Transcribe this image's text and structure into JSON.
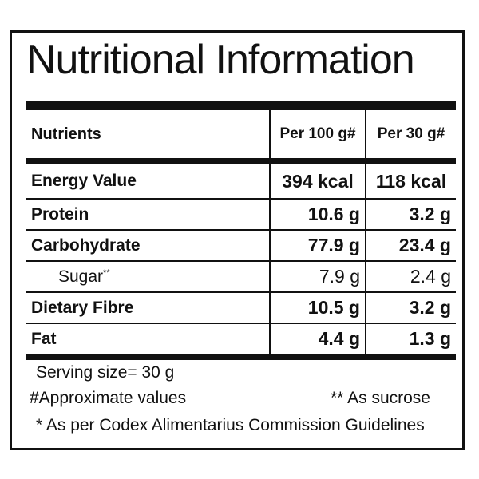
{
  "title": "Nutritional Information",
  "table": {
    "headers": [
      "Nutrients",
      "Per 100 g#",
      "Per 30 g#"
    ],
    "rows": [
      {
        "name": "Energy Value",
        "per100": "394 kcal",
        "per30": "118 kcal"
      },
      {
        "name": "Protein",
        "per100": "10.6 g",
        "per30": "3.2 g"
      },
      {
        "name": "Carbohydrate",
        "per100": "77.9 g",
        "per30": "23.4 g"
      },
      {
        "name": "Sugar",
        "name_mark": "**",
        "per100": "7.9 g",
        "per30": "2.4 g"
      },
      {
        "name": "Dietary Fibre",
        "per100": "10.5 g",
        "per30": "3.2 g"
      },
      {
        "name": "Fat",
        "per100": "4.4 g",
        "per30": "1.3 g"
      }
    ]
  },
  "footer": {
    "serving_size": "Serving size= 30 g",
    "approx": "#Approximate values",
    "sucrose": "** As sucrose",
    "codex": "* As per Codex Alimentarius Commission Guidelines"
  }
}
